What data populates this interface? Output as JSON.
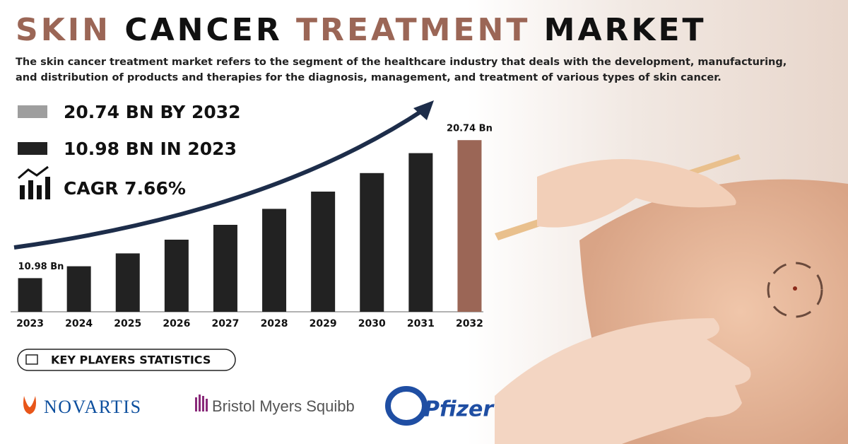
{
  "header": {
    "title_parts": [
      "SKIN",
      "CANCER",
      "TREATMENT",
      "MARKET"
    ],
    "description_lines": [
      "The skin cancer treatment market refers to the segment of the healthcare industry that deals with the development, manufacturing,",
      "and distribution of products and therapies for the diagnosis, management, and treatment of various types of skin cancer."
    ]
  },
  "stats": [
    "20.74 BN BY 2032",
    "10.98 BN IN 2023",
    "CAGR 7.66%"
  ],
  "key_players": {
    "heading": "KEY PLAYERS STATISTICS",
    "names": [
      "NOVARTIS",
      "Bristol Myers Squibb",
      "Pfizer"
    ]
  },
  "chart_data": {
    "type": "bar",
    "categories": [
      "2023",
      "2024",
      "2025",
      "2026",
      "2027",
      "2028",
      "2029",
      "2030",
      "2031",
      "2032"
    ],
    "values": [
      10.98,
      11.82,
      12.73,
      13.7,
      14.75,
      15.88,
      17.1,
      18.41,
      19.82,
      20.74
    ],
    "value_labels": [
      "10.98 Bn",
      null,
      null,
      null,
      null,
      null,
      null,
      null,
      null,
      "20.74 Bn"
    ],
    "colors": [
      "#222222",
      "#222222",
      "#222222",
      "#222222",
      "#222222",
      "#222222",
      "#222222",
      "#222222",
      "#222222",
      "#9b6656"
    ],
    "ylim": [
      8.6,
      22
    ]
  }
}
